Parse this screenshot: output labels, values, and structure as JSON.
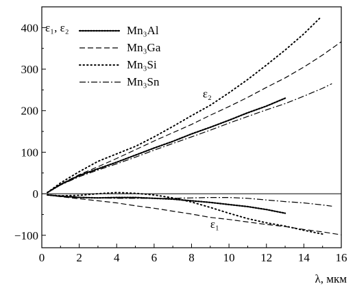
{
  "chart_data": {
    "type": "line",
    "xlabel": "λ, мкм",
    "ylabel": "ε₁, ε₂",
    "xlim": [
      0,
      16
    ],
    "ylim": [
      -130,
      450
    ],
    "xticks": [
      0,
      2,
      4,
      6,
      8,
      10,
      12,
      14,
      16
    ],
    "yticks": [
      -100,
      0,
      100,
      200,
      300,
      400
    ],
    "grid": false,
    "legend_position": "top-left",
    "annotations": [
      {
        "text": "ε₂",
        "x": 8.6,
        "y": 232
      },
      {
        "text": "ε₁",
        "x": 9.0,
        "y": -82
      }
    ],
    "series": [
      {
        "name": "Mn₃Al",
        "style": "dotted-dense",
        "component": "ε₂",
        "x": [
          0.3,
          1,
          2,
          3,
          4,
          5,
          6,
          7,
          8,
          9,
          10,
          11,
          12,
          13
        ],
        "y": [
          3,
          22,
          44,
          60,
          76,
          93,
          110,
          126,
          144,
          160,
          177,
          195,
          211,
          230
        ]
      },
      {
        "name": "Mn₃Ga",
        "style": "dashed",
        "component": "ε₂",
        "x": [
          0.3,
          1,
          2,
          3,
          4,
          5,
          6,
          7,
          8,
          9,
          10,
          11,
          12,
          13,
          14,
          15,
          16
        ],
        "y": [
          3,
          23,
          46,
          65,
          85,
          106,
          127,
          147,
          167,
          189,
          210,
          232,
          256,
          279,
          305,
          334,
          366
        ]
      },
      {
        "name": "Mn₃Si",
        "style": "dotted",
        "component": "ε₂",
        "x": [
          0.3,
          1,
          2,
          3,
          4,
          5,
          6,
          7,
          8,
          9,
          10,
          11,
          12,
          13,
          14,
          14.9
        ],
        "y": [
          3,
          26,
          53,
          78,
          96,
          114,
          137,
          162,
          188,
          213,
          243,
          275,
          310,
          346,
          385,
          425
        ]
      },
      {
        "name": "Mn₃Sn",
        "style": "dash-dot",
        "component": "ε₂",
        "x": [
          0.3,
          1,
          2,
          3,
          4,
          5,
          6,
          7,
          8,
          9,
          10,
          11,
          12,
          13,
          14,
          15,
          15.5
        ],
        "y": [
          3,
          21,
          41,
          57,
          72,
          88,
          105,
          121,
          137,
          153,
          170,
          186,
          202,
          217,
          235,
          254,
          265
        ]
      },
      {
        "name": "Mn₃Al",
        "style": "dotted-dense",
        "component": "ε₁",
        "x": [
          0.3,
          1,
          2,
          3,
          4,
          5,
          6,
          7,
          8,
          9,
          10,
          11,
          12,
          13
        ],
        "y": [
          -3,
          -6,
          -9,
          -10,
          -9,
          -9,
          -11,
          -13,
          -17,
          -21,
          -26,
          -31,
          -38,
          -47
        ]
      },
      {
        "name": "Mn₃Ga",
        "style": "dashed",
        "component": "ε₁",
        "x": [
          0.3,
          1,
          2,
          3,
          4,
          5,
          6,
          7,
          8,
          9,
          10,
          11,
          12,
          13,
          14,
          15,
          16
        ],
        "y": [
          -3,
          -7,
          -12,
          -17,
          -22,
          -29,
          -35,
          -42,
          -49,
          -57,
          -62,
          -68,
          -74,
          -79,
          -86,
          -92,
          -99
        ]
      },
      {
        "name": "Mn₃Si",
        "style": "dotted",
        "component": "ε₁",
        "x": [
          0.3,
          1,
          2,
          3,
          4,
          5,
          6,
          7,
          8,
          9,
          10,
          11,
          12,
          13,
          14,
          15
        ],
        "y": [
          -3,
          -5,
          -4,
          0,
          3,
          1,
          -3,
          -10,
          -20,
          -33,
          -47,
          -60,
          -70,
          -78,
          -88,
          -97
        ]
      },
      {
        "name": "Mn₃Sn",
        "style": "dash-dot",
        "component": "ε₁",
        "x": [
          0.3,
          1,
          2,
          3,
          4,
          5,
          6,
          7,
          8,
          9,
          10,
          11,
          12,
          13,
          14,
          15,
          15.5
        ],
        "y": [
          -3,
          -5,
          -8,
          -10,
          -11,
          -11,
          -11,
          -11,
          -10,
          -9,
          -9,
          -11,
          -15,
          -19,
          -22,
          -27,
          -30
        ]
      }
    ]
  }
}
